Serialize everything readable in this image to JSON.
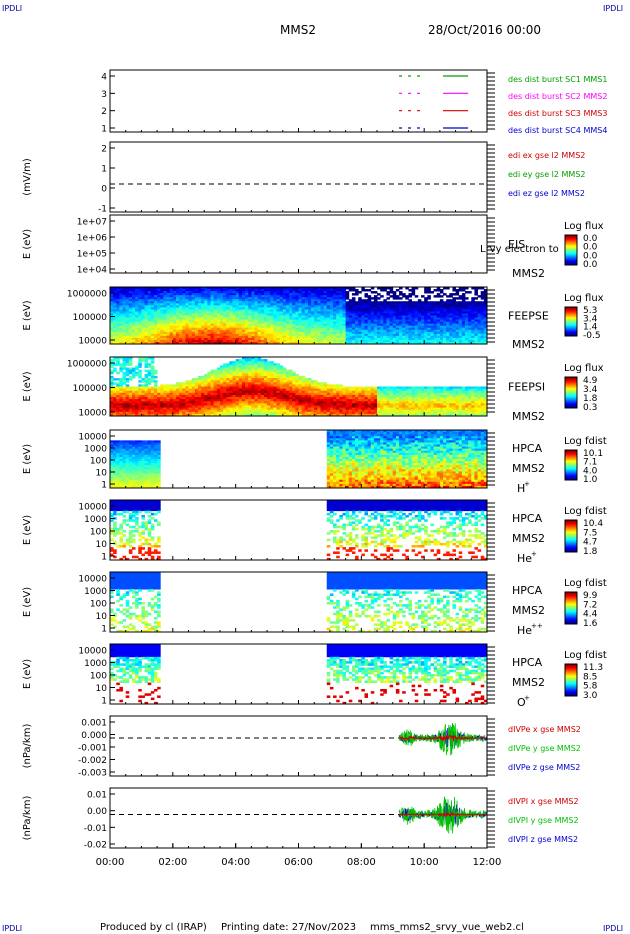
{
  "page": {
    "corner_label": "IPDLI",
    "title": "MMS2",
    "date": "28/Oct/2016 00:00",
    "footer_produced": "Produced by cl (IRAP)",
    "footer_printing": "Printing date: 27/Nov/2023",
    "footer_file": "mms_mms2_srvy_vue_web2.cl"
  },
  "chart_data": {
    "type": "heatmap",
    "x_axis": {
      "ticks": [
        "00:00",
        "02:00",
        "04:00",
        "06:00",
        "08:00",
        "10:00",
        "12:00"
      ],
      "range_hours": [
        0,
        12
      ]
    },
    "panels": [
      {
        "kind": "coverage",
        "ylabel": "",
        "y_ticks": [
          "4",
          "3",
          "2",
          "1"
        ],
        "series": [
          {
            "name": "des dist burst SC1 MMS1",
            "color": "#00a000",
            "level": 4,
            "segments": [
              [
                9.2,
                10.0
              ],
              [
                10.6,
                11.4
              ]
            ]
          },
          {
            "name": "des dist burst SC2 MMS2",
            "color": "#ff00ff",
            "level": 3,
            "segments": [
              [
                9.2,
                10.0
              ],
              [
                10.6,
                11.4
              ]
            ]
          },
          {
            "name": "des dist burst SC3 MMS3",
            "color": "#d00000",
            "level": 2,
            "segments": [
              [
                9.2,
                10.0
              ],
              [
                10.6,
                11.4
              ]
            ]
          },
          {
            "name": "des dist burst SC4 MMS4",
            "color": "#0000d0",
            "level": 1,
            "segments": [
              [
                9.2,
                10.0
              ],
              [
                10.6,
                11.4
              ]
            ]
          }
        ]
      },
      {
        "kind": "line",
        "ylabel": "(mV/m)",
        "y_ticks": [
          "2",
          "1",
          "0",
          "-1"
        ],
        "y_range": [
          -1.6,
          2.4
        ],
        "series": [
          {
            "name": "edi ex gse l2 MMS2",
            "color": "#d00000"
          },
          {
            "name": "edi ey gse l2 MMS2",
            "color": "#00a000"
          },
          {
            "name": "edi ez gse l2 MMS2",
            "color": "#0000d0"
          }
        ]
      },
      {
        "kind": "spectrogram",
        "ylabel": "E (eV)",
        "y_ticks": [
          "1e+07",
          "1e+06",
          "1e+05",
          "1e+04"
        ],
        "instrument": "EIS",
        "overlay_text": "Lrvy electron to",
        "spacecraft": "MMS2",
        "species": "",
        "colorbar_title": "Log flux",
        "colorbar_ticks": [
          "0.0",
          "0.0",
          "0.0",
          "0.0"
        ],
        "empty": true,
        "coverage": []
      },
      {
        "kind": "spectrogram",
        "ylabel": "E (eV)",
        "y_ticks": [
          "1000000",
          "100000",
          "10000"
        ],
        "instrument": "FEEPSE",
        "spacecraft": "MMS2",
        "species": "",
        "colorbar_title": "Log flux",
        "colorbar_ticks": [
          "5.3",
          "3.4",
          "1.4",
          "-0.5"
        ],
        "coverage": [
          [
            0,
            12
          ]
        ],
        "profile": "feepse"
      },
      {
        "kind": "spectrogram",
        "ylabel": "E (eV)",
        "y_ticks": [
          "1000000",
          "100000",
          "10000"
        ],
        "instrument": "FEEPSI",
        "spacecraft": "MMS2",
        "species": "",
        "colorbar_title": "Log flux",
        "colorbar_ticks": [
          "4.9",
          "3.4",
          "1.8",
          "0.3"
        ],
        "coverage": [
          [
            0,
            12
          ]
        ],
        "profile": "feepsi"
      },
      {
        "kind": "spectrogram",
        "ylabel": "E (eV)",
        "y_ticks": [
          "10000",
          "1000",
          "100",
          "10",
          "1"
        ],
        "instrument": "HPCA",
        "spacecraft": "MMS2",
        "species": "H",
        "species_sup": "+",
        "colorbar_title": "Log fdist",
        "colorbar_ticks": [
          "10.1",
          "7.1",
          "4.0",
          "1.0"
        ],
        "coverage": [
          [
            0,
            1.65
          ],
          [
            6.9,
            12
          ]
        ],
        "profile": "hplus"
      },
      {
        "kind": "spectrogram",
        "ylabel": "E (eV)",
        "y_ticks": [
          "10000",
          "1000",
          "100",
          "10",
          "1"
        ],
        "instrument": "HPCA",
        "spacecraft": "MMS2",
        "species": "He",
        "species_sup": "+",
        "colorbar_title": "Log fdist",
        "colorbar_ticks": [
          "10.4",
          "7.5",
          "4.7",
          "1.8"
        ],
        "coverage": [
          [
            0,
            1.65
          ],
          [
            6.9,
            12
          ]
        ],
        "profile": "heplus"
      },
      {
        "kind": "spectrogram",
        "ylabel": "E (eV)",
        "y_ticks": [
          "10000",
          "1000",
          "100",
          "10",
          "1"
        ],
        "instrument": "HPCA",
        "spacecraft": "MMS2",
        "species": "He",
        "species_sup": "++",
        "colorbar_title": "Log fdist",
        "colorbar_ticks": [
          "9.9",
          "7.2",
          "4.4",
          "1.6"
        ],
        "coverage": [
          [
            0,
            1.65
          ],
          [
            6.9,
            12
          ]
        ],
        "profile": "heplusplus"
      },
      {
        "kind": "spectrogram",
        "ylabel": "E (eV)",
        "y_ticks": [
          "10000",
          "1000",
          "100",
          "10",
          "1"
        ],
        "instrument": "HPCA",
        "spacecraft": "MMS2",
        "species": "O",
        "species_sup": "+",
        "colorbar_title": "Log fdist",
        "colorbar_ticks": [
          "11.3",
          "8.5",
          "5.8",
          "3.0"
        ],
        "coverage": [
          [
            0,
            1.65
          ],
          [
            6.9,
            12
          ]
        ],
        "profile": "oplus"
      },
      {
        "kind": "line",
        "ylabel": "(nPa/km)",
        "y_ticks": [
          "0.001",
          "0.000",
          "-0.001",
          "-0.002",
          "-0.003"
        ],
        "y_range": [
          -0.0031,
          0.0018
        ],
        "data_window": [
          9.2,
          12
        ],
        "series": [
          {
            "name": "dIVPe x gse MMS2",
            "color": "#d00000",
            "amp": 0.0002
          },
          {
            "name": "dIVPe y gse MMS2",
            "color": "#00c000",
            "amp": 0.0012
          },
          {
            "name": "dIVPe z gse MMS2",
            "color": "#0000d0",
            "amp": 0.0007
          }
        ]
      },
      {
        "kind": "line",
        "ylabel": "(nPa/km)",
        "y_ticks": [
          "0.01",
          "0.00",
          "-0.01",
          "-0.02"
        ],
        "y_range": [
          -0.024,
          0.019
        ],
        "data_window": [
          9.2,
          12
        ],
        "series": [
          {
            "name": "dIVPI x gse MMS2",
            "color": "#d00000",
            "amp": 0.001
          },
          {
            "name": "dIVPI y gse MMS2",
            "color": "#00c000",
            "amp": 0.012
          },
          {
            "name": "dIVPI z gse MMS2",
            "color": "#0000d0",
            "amp": 0.008
          }
        ]
      }
    ]
  }
}
